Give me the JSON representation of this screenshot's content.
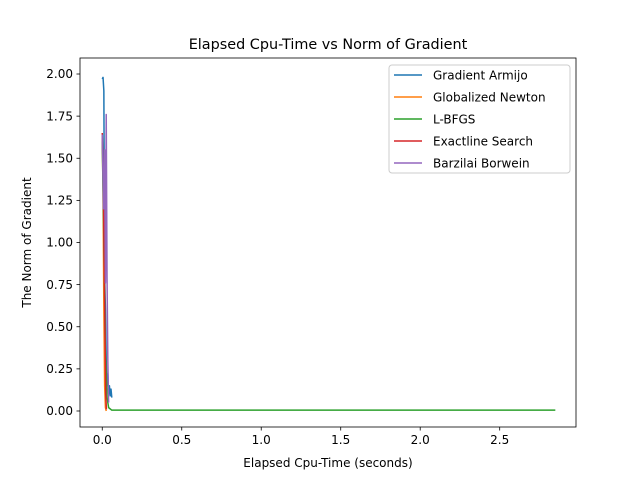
{
  "chart_data": {
    "type": "line",
    "title": "Elapsed Cpu-Time vs Norm of Gradient",
    "xlabel": "Elapsed Cpu-Time (seconds)",
    "ylabel": "The Norm of Gradient",
    "xlim": [
      -0.14,
      2.98
    ],
    "ylim": [
      -0.095,
      2.095
    ],
    "xticks": [
      0.0,
      0.5,
      1.0,
      1.5,
      2.0,
      2.5
    ],
    "xtick_labels": [
      "0.0",
      "0.5",
      "1.0",
      "1.5",
      "2.0",
      "2.5"
    ],
    "yticks": [
      0.0,
      0.25,
      0.5,
      0.75,
      1.0,
      1.25,
      1.5,
      1.75,
      2.0
    ],
    "ytick_labels": [
      "0.00",
      "0.25",
      "0.50",
      "0.75",
      "1.00",
      "1.25",
      "1.50",
      "1.75",
      "2.00"
    ],
    "grid": false,
    "legend_position": "top-right",
    "series": [
      {
        "name": "Gradient Armijo",
        "color": "#1f77b4",
        "points": [
          [
            0.0,
            1.97
          ],
          [
            0.005,
            1.98
          ],
          [
            0.01,
            1.9
          ],
          [
            0.015,
            0.8
          ],
          [
            0.02,
            0.6
          ],
          [
            0.025,
            0.3
          ],
          [
            0.03,
            0.15
          ],
          [
            0.035,
            0.22
          ],
          [
            0.04,
            0.1
          ],
          [
            0.045,
            0.15
          ],
          [
            0.05,
            0.09
          ],
          [
            0.055,
            0.13
          ],
          [
            0.06,
            0.08
          ]
        ]
      },
      {
        "name": "Globalized Newton",
        "color": "#ff7f0e",
        "points": [
          [
            0.0,
            1.62
          ],
          [
            0.005,
            1.3
          ],
          [
            0.01,
            0.6
          ],
          [
            0.015,
            0.15
          ],
          [
            0.02,
            0.02
          ],
          [
            0.025,
            0.0
          ]
        ]
      },
      {
        "name": "L-BFGS",
        "color": "#2ca02c",
        "points": [
          [
            0.0,
            1.6
          ],
          [
            0.01,
            1.0
          ],
          [
            0.02,
            0.35
          ],
          [
            0.03,
            0.08
          ],
          [
            0.04,
            0.02
          ],
          [
            0.06,
            0.005
          ],
          [
            2.85,
            0.005
          ]
        ]
      },
      {
        "name": "Exactline Search",
        "color": "#d62728",
        "points": [
          [
            0.0,
            1.65
          ],
          [
            0.006,
            1.4
          ],
          [
            0.012,
            0.9
          ],
          [
            0.018,
            0.4
          ],
          [
            0.022,
            0.1
          ],
          [
            0.026,
            0.01
          ]
        ]
      },
      {
        "name": "Barzilai Borwein",
        "color": "#9467bd",
        "points": [
          [
            0.0,
            1.64
          ],
          [
            0.008,
            1.2
          ],
          [
            0.015,
            1.55
          ],
          [
            0.02,
            0.76
          ],
          [
            0.025,
            1.76
          ],
          [
            0.03,
            0.8
          ],
          [
            0.035,
            0.3
          ],
          [
            0.04,
            0.05
          ]
        ]
      }
    ]
  }
}
